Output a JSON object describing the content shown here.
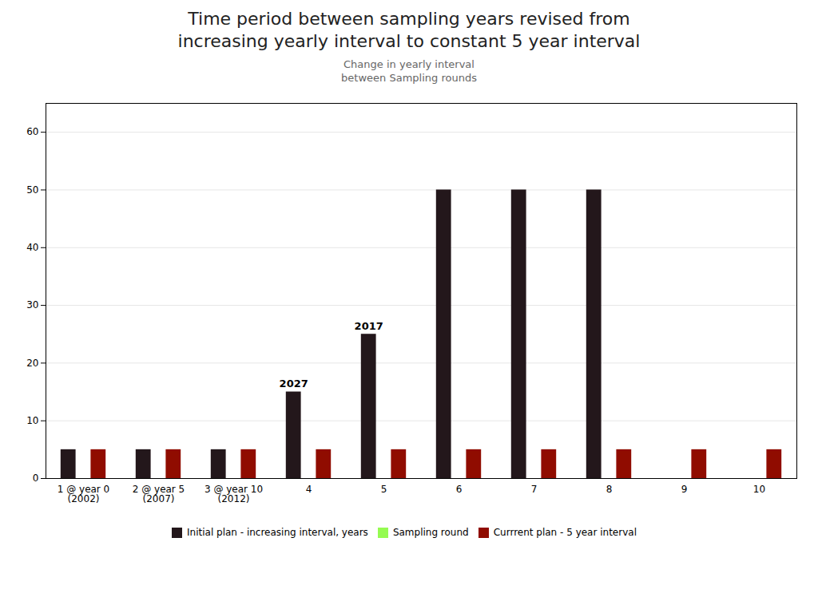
{
  "chart_data": {
    "type": "bar",
    "title": "Time period between sampling years revised from\nincreasing yearly interval to constant 5 year interval",
    "subtitle": "Change in yearly interval\nbetween Sampling rounds",
    "categories": [
      "1 @ year 0\n(2002)",
      "2 @ year 5\n(2007)",
      "3 @ year 10\n(2012)",
      "4",
      "5",
      "6",
      "7",
      "8",
      "9",
      "10"
    ],
    "series": [
      {
        "name": "Initial plan - increasing interval, years",
        "values": [
          5,
          5,
          5,
          15,
          25,
          50,
          50,
          50,
          0,
          0
        ]
      },
      {
        "name": "Sampling round",
        "values": [
          0,
          0,
          0,
          0,
          0,
          0,
          0,
          0,
          0,
          0
        ]
      },
      {
        "name": "Currrent plan - 5 year interval",
        "values": [
          5,
          5,
          5,
          5,
          5,
          5,
          5,
          5,
          5,
          5
        ]
      }
    ],
    "annotations": [
      {
        "text": "2027",
        "x": "4",
        "series": "Initial plan - increasing interval, years"
      },
      {
        "text": "2017",
        "x": "5",
        "series": "Initial plan - increasing interval, years"
      }
    ],
    "ylim": [
      0,
      65
    ],
    "yticks": [
      0,
      10,
      20,
      30,
      40,
      50,
      60
    ],
    "grid": true,
    "legend": "bottom"
  }
}
